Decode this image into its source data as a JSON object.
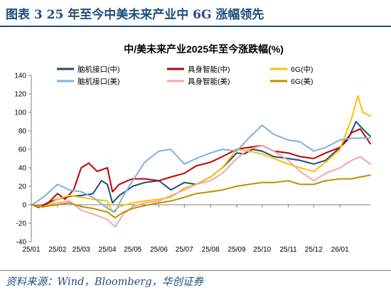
{
  "header": {
    "title": "图表 3   25 年至今中美未来产业中 6G 涨幅领先"
  },
  "footer": {
    "source": "资料来源：Wind，Bloomberg，华创证券"
  },
  "chart_data": {
    "type": "line",
    "title": "中/美未来产业2025年至今涨跌幅(%)",
    "xlabel": "",
    "ylabel": "",
    "ylim": [
      -40,
      140
    ],
    "yticks": [
      -40,
      -20,
      0,
      20,
      40,
      60,
      80,
      100,
      120,
      140
    ],
    "xlim": [
      "2025-01-01",
      "2026-02-06"
    ],
    "xticks": [
      "2025-01-01",
      "2025-02-01",
      "2025-03-01",
      "2025-04-01",
      "2025-05-01",
      "2025-06-01",
      "2025-07-01",
      "2025-08-01",
      "2025-09-01",
      "2025-10-01",
      "2025-11-01",
      "2025-12-01",
      "2026-01-01"
    ],
    "xtick_labels": [
      "25/01",
      "25/02",
      "25/03",
      "25/04",
      "25/05",
      "25/06",
      "25/07",
      "25/08",
      "25/09",
      "25/10",
      "25/11",
      "25/12",
      "26/01"
    ],
    "grid": false,
    "legend_position": "top",
    "series": [
      {
        "name": "脑机接口(中)",
        "color": "#1f4e79",
        "points": [
          [
            "2025-01-02",
            0
          ],
          [
            "2025-01-10",
            -3
          ],
          [
            "2025-01-20",
            2
          ],
          [
            "2025-02-01",
            6
          ],
          [
            "2025-02-15",
            9
          ],
          [
            "2025-03-01",
            10
          ],
          [
            "2025-03-15",
            12
          ],
          [
            "2025-03-25",
            26
          ],
          [
            "2025-04-01",
            22
          ],
          [
            "2025-04-07",
            2
          ],
          [
            "2025-04-15",
            10
          ],
          [
            "2025-04-25",
            16
          ],
          [
            "2025-05-01",
            20
          ],
          [
            "2025-05-15",
            24
          ],
          [
            "2025-06-01",
            26
          ],
          [
            "2025-06-15",
            16
          ],
          [
            "2025-07-01",
            24
          ],
          [
            "2025-07-15",
            22
          ],
          [
            "2025-08-01",
            30
          ],
          [
            "2025-08-15",
            40
          ],
          [
            "2025-09-01",
            56
          ],
          [
            "2025-09-10",
            55
          ],
          [
            "2025-09-20",
            60
          ],
          [
            "2025-10-01",
            58
          ],
          [
            "2025-10-15",
            52
          ],
          [
            "2025-11-01",
            50
          ],
          [
            "2025-11-15",
            48
          ],
          [
            "2025-12-01",
            44
          ],
          [
            "2025-12-15",
            48
          ],
          [
            "2026-01-01",
            62
          ],
          [
            "2026-01-10",
            70
          ],
          [
            "2026-01-20",
            90
          ],
          [
            "2026-01-28",
            82
          ],
          [
            "2026-02-06",
            74
          ]
        ]
      },
      {
        "name": "具身智能(中)",
        "color": "#c00000",
        "points": [
          [
            "2025-01-02",
            0
          ],
          [
            "2025-01-10",
            -2
          ],
          [
            "2025-01-20",
            1
          ],
          [
            "2025-02-01",
            12
          ],
          [
            "2025-02-10",
            6
          ],
          [
            "2025-02-20",
            16
          ],
          [
            "2025-03-01",
            40
          ],
          [
            "2025-03-10",
            45
          ],
          [
            "2025-03-20",
            36
          ],
          [
            "2025-04-01",
            40
          ],
          [
            "2025-04-07",
            14
          ],
          [
            "2025-04-15",
            22
          ],
          [
            "2025-04-25",
            26
          ],
          [
            "2025-05-01",
            28
          ],
          [
            "2025-05-15",
            28
          ],
          [
            "2025-06-01",
            26
          ],
          [
            "2025-06-15",
            30
          ],
          [
            "2025-07-01",
            34
          ],
          [
            "2025-07-15",
            42
          ],
          [
            "2025-08-01",
            46
          ],
          [
            "2025-08-15",
            52
          ],
          [
            "2025-09-01",
            60
          ],
          [
            "2025-09-15",
            62
          ],
          [
            "2025-10-01",
            64
          ],
          [
            "2025-10-15",
            58
          ],
          [
            "2025-11-01",
            56
          ],
          [
            "2025-11-15",
            52
          ],
          [
            "2025-12-01",
            50
          ],
          [
            "2025-12-15",
            56
          ],
          [
            "2026-01-01",
            62
          ],
          [
            "2026-01-15",
            78
          ],
          [
            "2026-01-25",
            82
          ],
          [
            "2026-02-06",
            66
          ]
        ]
      },
      {
        "name": "6G(中)",
        "color": "#ffc000",
        "points": [
          [
            "2025-01-02",
            0
          ],
          [
            "2025-01-15",
            -3
          ],
          [
            "2025-02-01",
            6
          ],
          [
            "2025-02-15",
            10
          ],
          [
            "2025-03-01",
            8
          ],
          [
            "2025-03-15",
            6
          ],
          [
            "2025-04-01",
            4
          ],
          [
            "2025-04-07",
            -8
          ],
          [
            "2025-04-15",
            -2
          ],
          [
            "2025-05-01",
            2
          ],
          [
            "2025-05-15",
            4
          ],
          [
            "2025-06-01",
            6
          ],
          [
            "2025-06-15",
            8
          ],
          [
            "2025-07-01",
            18
          ],
          [
            "2025-07-15",
            22
          ],
          [
            "2025-08-01",
            30
          ],
          [
            "2025-08-15",
            40
          ],
          [
            "2025-09-01",
            60
          ],
          [
            "2025-09-15",
            58
          ],
          [
            "2025-10-01",
            55
          ],
          [
            "2025-10-15",
            50
          ],
          [
            "2025-11-01",
            44
          ],
          [
            "2025-11-15",
            40
          ],
          [
            "2025-12-01",
            36
          ],
          [
            "2025-12-15",
            46
          ],
          [
            "2026-01-01",
            60
          ],
          [
            "2026-01-15",
            94
          ],
          [
            "2026-01-22",
            118
          ],
          [
            "2026-01-28",
            100
          ],
          [
            "2026-02-06",
            96
          ]
        ]
      },
      {
        "name": "脑机接口(美)",
        "color": "#7fb2d5",
        "points": [
          [
            "2025-01-02",
            0
          ],
          [
            "2025-01-15",
            8
          ],
          [
            "2025-02-01",
            22
          ],
          [
            "2025-02-15",
            16
          ],
          [
            "2025-03-01",
            14
          ],
          [
            "2025-03-15",
            8
          ],
          [
            "2025-04-01",
            -4
          ],
          [
            "2025-04-10",
            -8
          ],
          [
            "2025-04-20",
            10
          ],
          [
            "2025-05-01",
            26
          ],
          [
            "2025-05-15",
            46
          ],
          [
            "2025-06-01",
            58
          ],
          [
            "2025-06-15",
            60
          ],
          [
            "2025-07-01",
            44
          ],
          [
            "2025-07-15",
            50
          ],
          [
            "2025-08-01",
            56
          ],
          [
            "2025-08-15",
            60
          ],
          [
            "2025-09-01",
            58
          ],
          [
            "2025-09-15",
            72
          ],
          [
            "2025-10-01",
            86
          ],
          [
            "2025-10-15",
            76
          ],
          [
            "2025-11-01",
            70
          ],
          [
            "2025-11-15",
            68
          ],
          [
            "2025-12-01",
            58
          ],
          [
            "2025-12-15",
            62
          ],
          [
            "2026-01-01",
            70
          ],
          [
            "2026-01-15",
            72
          ],
          [
            "2026-02-06",
            72
          ]
        ]
      },
      {
        "name": "具身智能(美)",
        "color": "#f4a6a6",
        "points": [
          [
            "2025-01-02",
            0
          ],
          [
            "2025-01-15",
            -2
          ],
          [
            "2025-02-01",
            2
          ],
          [
            "2025-02-15",
            4
          ],
          [
            "2025-03-01",
            -6
          ],
          [
            "2025-03-15",
            -10
          ],
          [
            "2025-04-01",
            -16
          ],
          [
            "2025-04-10",
            -24
          ],
          [
            "2025-04-20",
            -10
          ],
          [
            "2025-05-01",
            -2
          ],
          [
            "2025-05-15",
            2
          ],
          [
            "2025-06-01",
            4
          ],
          [
            "2025-06-15",
            10
          ],
          [
            "2025-07-01",
            16
          ],
          [
            "2025-07-15",
            22
          ],
          [
            "2025-08-01",
            26
          ],
          [
            "2025-08-15",
            34
          ],
          [
            "2025-09-01",
            50
          ],
          [
            "2025-09-15",
            60
          ],
          [
            "2025-10-01",
            64
          ],
          [
            "2025-10-15",
            58
          ],
          [
            "2025-11-01",
            48
          ],
          [
            "2025-11-15",
            36
          ],
          [
            "2025-12-01",
            26
          ],
          [
            "2025-12-15",
            34
          ],
          [
            "2026-01-01",
            40
          ],
          [
            "2026-01-15",
            48
          ],
          [
            "2026-01-25",
            52
          ],
          [
            "2026-02-06",
            44
          ]
        ]
      },
      {
        "name": "6G(美)",
        "color": "#bf8f00",
        "points": [
          [
            "2025-01-02",
            0
          ],
          [
            "2025-01-15",
            -2
          ],
          [
            "2025-02-01",
            0
          ],
          [
            "2025-02-15",
            2
          ],
          [
            "2025-03-01",
            -2
          ],
          [
            "2025-03-15",
            -4
          ],
          [
            "2025-04-01",
            -8
          ],
          [
            "2025-04-10",
            -14
          ],
          [
            "2025-04-20",
            -8
          ],
          [
            "2025-05-01",
            -4
          ],
          [
            "2025-05-15",
            -1
          ],
          [
            "2025-06-01",
            2
          ],
          [
            "2025-06-15",
            4
          ],
          [
            "2025-07-01",
            8
          ],
          [
            "2025-07-15",
            12
          ],
          [
            "2025-08-01",
            14
          ],
          [
            "2025-08-15",
            16
          ],
          [
            "2025-09-01",
            20
          ],
          [
            "2025-09-15",
            22
          ],
          [
            "2025-10-01",
            24
          ],
          [
            "2025-10-15",
            24
          ],
          [
            "2025-11-01",
            26
          ],
          [
            "2025-11-15",
            22
          ],
          [
            "2025-12-01",
            22
          ],
          [
            "2025-12-15",
            26
          ],
          [
            "2026-01-01",
            28
          ],
          [
            "2026-01-15",
            28
          ],
          [
            "2026-01-25",
            30
          ],
          [
            "2026-02-06",
            32
          ]
        ]
      }
    ]
  }
}
